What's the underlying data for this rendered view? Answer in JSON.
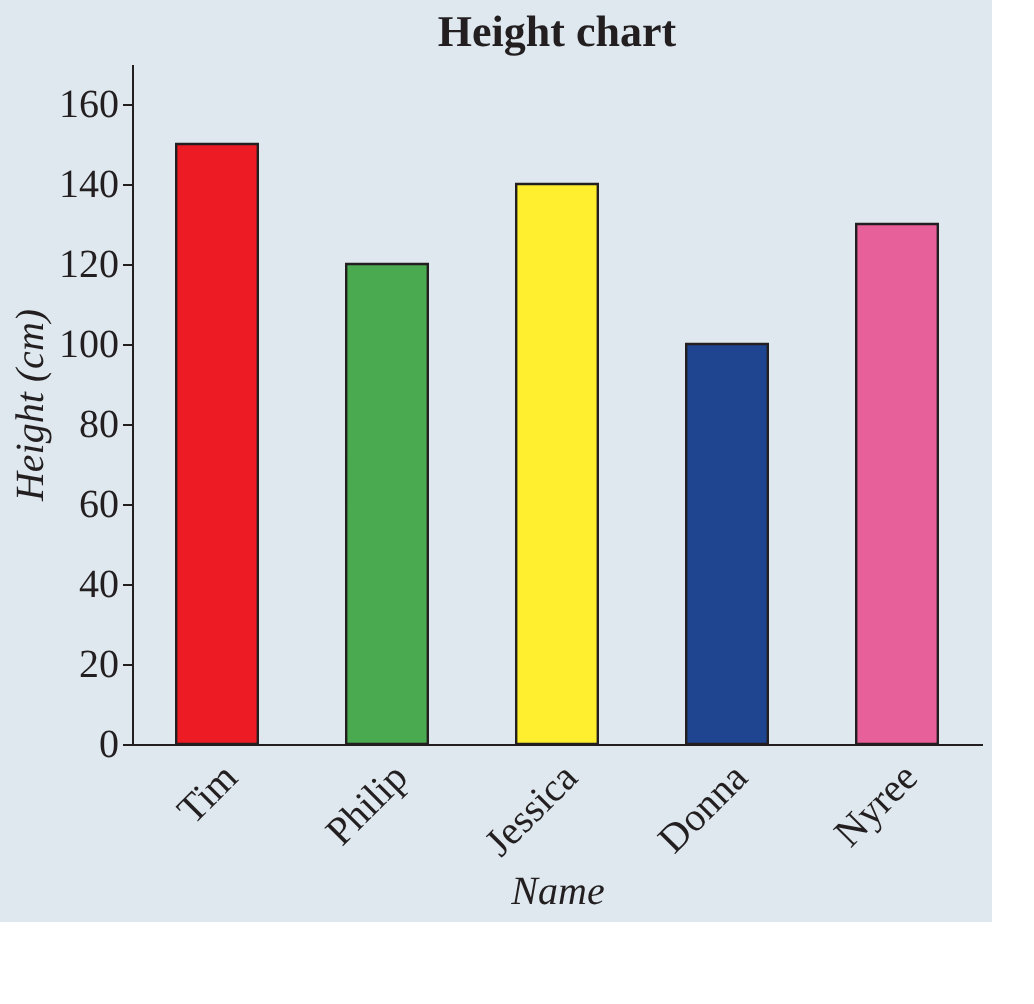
{
  "chart_data": {
    "type": "bar",
    "title": "Height chart",
    "xlabel": "Name",
    "ylabel": "Height (cm)",
    "categories": [
      "Tim",
      "Philip",
      "Jessica",
      "Donna",
      "Nyree"
    ],
    "values": [
      150,
      120,
      140,
      100,
      130
    ],
    "colors": [
      "#ed1c24",
      "#4aaa50",
      "#ffef2f",
      "#1f4590",
      "#e8609a"
    ],
    "ylim": [
      0,
      170
    ],
    "yticks": [
      0,
      20,
      40,
      60,
      80,
      100,
      120,
      140,
      160
    ],
    "grid": false
  }
}
